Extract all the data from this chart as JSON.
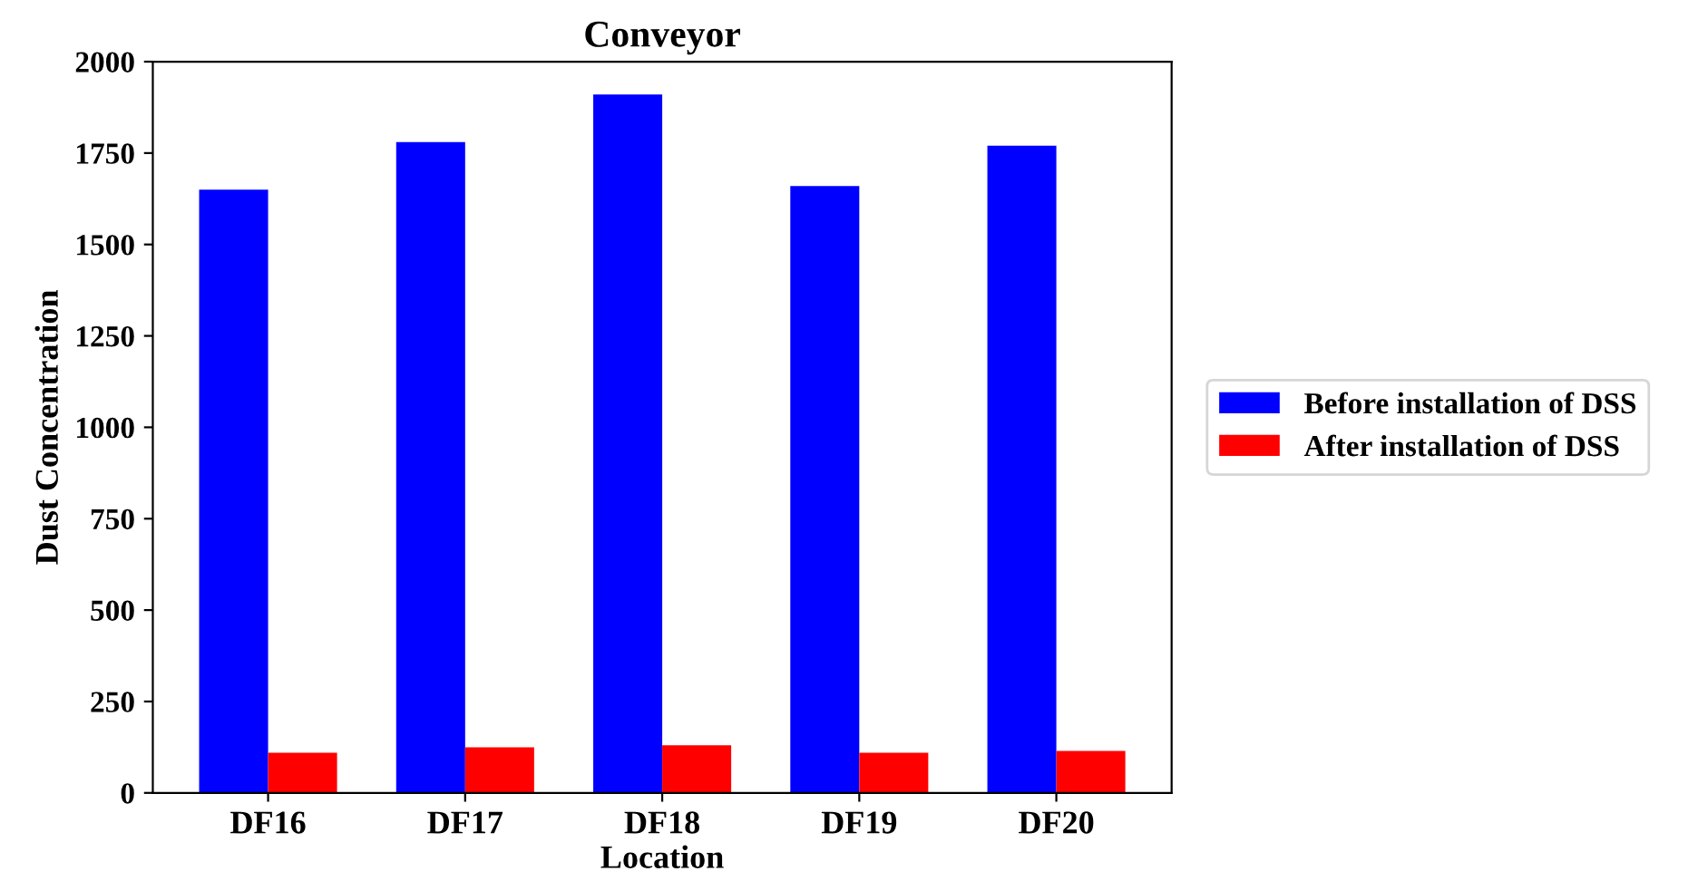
{
  "chart_data": {
    "type": "bar",
    "title": "Conveyor",
    "xlabel": "Location",
    "ylabel": "Dust Concentration",
    "categories": [
      "DF16",
      "DF17",
      "DF18",
      "DF19",
      "DF20"
    ],
    "series": [
      {
        "name": "Before installation of DSS",
        "color": "#0000ff",
        "values": [
          1650,
          1780,
          1910,
          1660,
          1770
        ]
      },
      {
        "name": "After installation of DSS",
        "color": "#ff0000",
        "values": [
          110,
          125,
          130,
          110,
          115
        ]
      }
    ],
    "ylim": [
      0,
      2000
    ],
    "yticks": [
      0,
      250,
      500,
      750,
      1000,
      1250,
      1500,
      1750,
      2000
    ],
    "grid": false,
    "legend": "right"
  }
}
